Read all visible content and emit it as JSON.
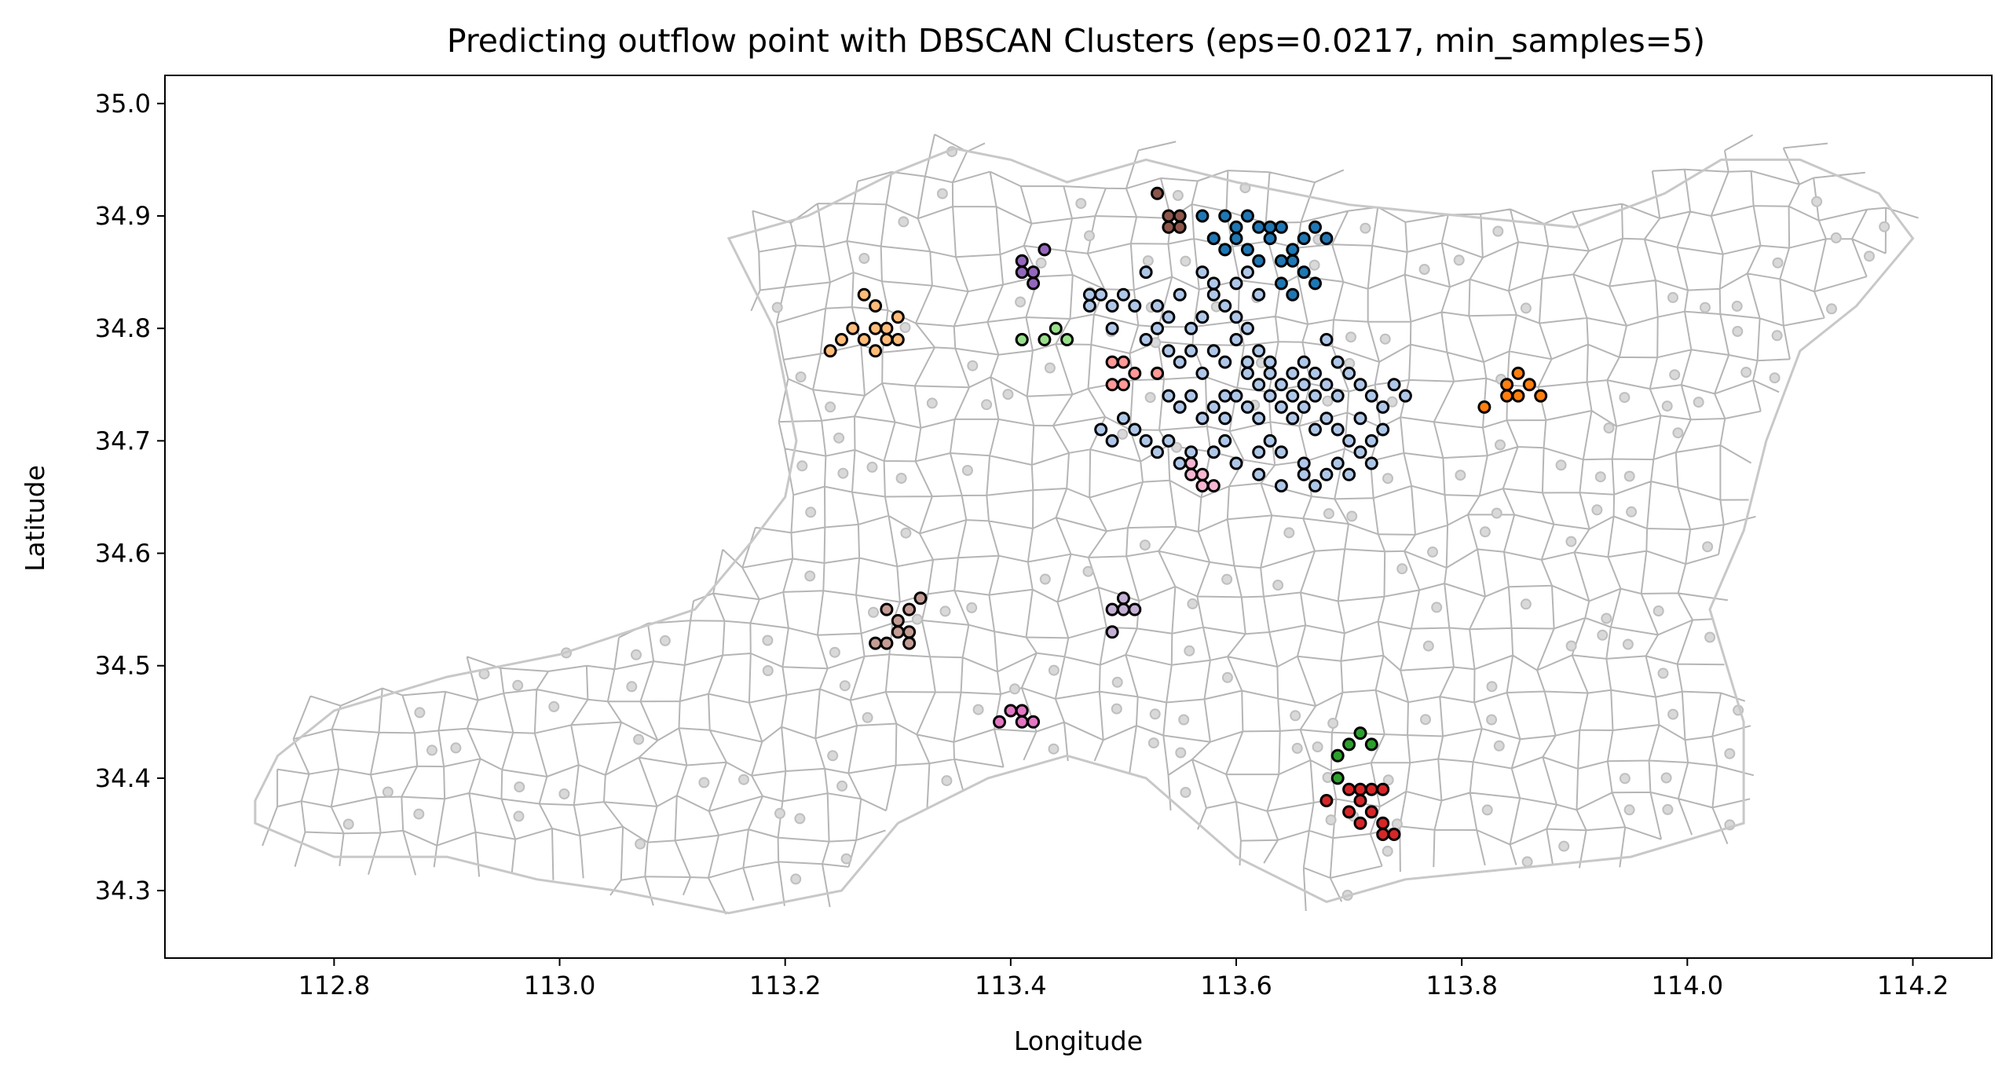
{
  "chart_data": {
    "type": "scatter",
    "title": "Predicting outflow point with DBSCAN Clusters (eps=0.0217, min_samples=5)",
    "xlabel": "Longitude",
    "ylabel": "Latitude",
    "xlim": [
      112.65,
      114.27
    ],
    "ylim": [
      34.24,
      35.025
    ],
    "xticks": [
      "112.8",
      "113.0",
      "113.2",
      "113.4",
      "113.6",
      "113.8",
      "114.0",
      "114.2"
    ],
    "yticks": [
      "34.3",
      "34.4",
      "34.5",
      "34.6",
      "34.7",
      "34.8",
      "34.9",
      "35.0"
    ],
    "grid": false,
    "legend": "none",
    "background": "voronoi-cell-mesh",
    "series": [
      {
        "color": "#aec7e8",
        "points": [
          [
            113.47,
            34.83
          ],
          [
            113.48,
            34.83
          ],
          [
            113.49,
            34.82
          ],
          [
            113.5,
            34.83
          ],
          [
            113.51,
            34.82
          ],
          [
            113.52,
            34.85
          ],
          [
            113.53,
            34.82
          ],
          [
            113.54,
            34.81
          ],
          [
            113.55,
            34.83
          ],
          [
            113.56,
            34.8
          ],
          [
            113.57,
            34.81
          ],
          [
            113.58,
            34.83
          ],
          [
            113.59,
            34.82
          ],
          [
            113.6,
            34.81
          ],
          [
            113.61,
            34.8
          ],
          [
            113.47,
            34.82
          ],
          [
            113.49,
            34.8
          ],
          [
            113.52,
            34.79
          ],
          [
            113.53,
            34.8
          ],
          [
            113.54,
            34.78
          ],
          [
            113.55,
            34.77
          ],
          [
            113.56,
            34.78
          ],
          [
            113.57,
            34.76
          ],
          [
            113.58,
            34.78
          ],
          [
            113.59,
            34.77
          ],
          [
            113.6,
            34.79
          ],
          [
            113.61,
            34.76
          ],
          [
            113.62,
            34.78
          ],
          [
            113.63,
            34.77
          ],
          [
            113.64,
            34.75
          ],
          [
            113.65,
            34.76
          ],
          [
            113.66,
            34.75
          ],
          [
            113.67,
            34.76
          ],
          [
            113.68,
            34.75
          ],
          [
            113.69,
            34.77
          ],
          [
            113.7,
            34.76
          ],
          [
            113.71,
            34.75
          ],
          [
            113.72,
            34.74
          ],
          [
            113.73,
            34.73
          ],
          [
            113.74,
            34.75
          ],
          [
            113.75,
            34.74
          ],
          [
            113.53,
            34.76
          ],
          [
            113.54,
            34.74
          ],
          [
            113.55,
            34.73
          ],
          [
            113.56,
            34.74
          ],
          [
            113.57,
            34.72
          ],
          [
            113.58,
            34.73
          ],
          [
            113.59,
            34.72
          ],
          [
            113.6,
            34.74
          ],
          [
            113.61,
            34.73
          ],
          [
            113.62,
            34.72
          ],
          [
            113.63,
            34.74
          ],
          [
            113.64,
            34.73
          ],
          [
            113.65,
            34.72
          ],
          [
            113.66,
            34.73
          ],
          [
            113.67,
            34.71
          ],
          [
            113.68,
            34.72
          ],
          [
            113.69,
            34.71
          ],
          [
            113.7,
            34.7
          ],
          [
            113.71,
            34.72
          ],
          [
            113.72,
            34.7
          ],
          [
            113.73,
            34.71
          ],
          [
            113.48,
            34.71
          ],
          [
            113.49,
            34.7
          ],
          [
            113.5,
            34.72
          ],
          [
            113.51,
            34.71
          ],
          [
            113.52,
            34.7
          ],
          [
            113.53,
            34.69
          ],
          [
            113.54,
            34.7
          ],
          [
            113.55,
            34.68
          ],
          [
            113.56,
            34.69
          ],
          [
            113.58,
            34.69
          ],
          [
            113.59,
            34.7
          ],
          [
            113.6,
            34.68
          ],
          [
            113.62,
            34.69
          ],
          [
            113.63,
            34.7
          ],
          [
            113.64,
            34.69
          ],
          [
            113.66,
            34.68
          ],
          [
            113.67,
            34.66
          ],
          [
            113.68,
            34.67
          ],
          [
            113.69,
            34.68
          ],
          [
            113.7,
            34.67
          ],
          [
            113.71,
            34.69
          ],
          [
            113.72,
            34.68
          ],
          [
            113.62,
            34.67
          ],
          [
            113.64,
            34.66
          ],
          [
            113.66,
            34.67
          ],
          [
            113.57,
            34.85
          ],
          [
            113.58,
            34.84
          ],
          [
            113.6,
            34.84
          ],
          [
            113.61,
            34.85
          ],
          [
            113.62,
            34.83
          ],
          [
            113.61,
            34.77
          ],
          [
            113.62,
            34.75
          ],
          [
            113.63,
            34.76
          ],
          [
            113.65,
            34.74
          ],
          [
            113.66,
            34.77
          ],
          [
            113.67,
            34.74
          ],
          [
            113.69,
            34.74
          ],
          [
            113.68,
            34.79
          ],
          [
            113.59,
            34.74
          ]
        ]
      },
      {
        "color": "#1f77b4",
        "points": [
          [
            113.57,
            34.9
          ],
          [
            113.59,
            34.9
          ],
          [
            113.6,
            34.89
          ],
          [
            113.61,
            34.9
          ],
          [
            113.62,
            34.89
          ],
          [
            113.63,
            34.88
          ],
          [
            113.64,
            34.89
          ],
          [
            113.65,
            34.87
          ],
          [
            113.66,
            34.88
          ],
          [
            113.67,
            34.89
          ],
          [
            113.68,
            34.88
          ],
          [
            113.58,
            34.88
          ],
          [
            113.59,
            34.87
          ],
          [
            113.6,
            34.88
          ],
          [
            113.61,
            34.87
          ],
          [
            113.62,
            34.86
          ],
          [
            113.64,
            34.86
          ],
          [
            113.65,
            34.86
          ],
          [
            113.66,
            34.85
          ],
          [
            113.67,
            34.84
          ],
          [
            113.64,
            34.84
          ],
          [
            113.65,
            34.83
          ],
          [
            113.58,
            34.88
          ],
          [
            113.63,
            34.89
          ]
        ]
      },
      {
        "color": "#ffbb78",
        "points": [
          [
            113.27,
            34.83
          ],
          [
            113.28,
            34.82
          ],
          [
            113.26,
            34.8
          ],
          [
            113.28,
            34.8
          ],
          [
            113.3,
            34.81
          ],
          [
            113.25,
            34.79
          ],
          [
            113.27,
            34.79
          ],
          [
            113.29,
            34.79
          ],
          [
            113.3,
            34.79
          ],
          [
            113.28,
            34.78
          ],
          [
            113.24,
            34.78
          ],
          [
            113.29,
            34.8
          ]
        ]
      },
      {
        "color": "#ff7f0e",
        "points": [
          [
            113.82,
            34.73
          ],
          [
            113.84,
            34.74
          ],
          [
            113.85,
            34.76
          ],
          [
            113.86,
            34.75
          ],
          [
            113.87,
            34.74
          ],
          [
            113.85,
            34.74
          ],
          [
            113.84,
            34.75
          ]
        ]
      },
      {
        "color": "#8c564b",
        "points": [
          [
            113.53,
            34.92
          ],
          [
            113.54,
            34.9
          ],
          [
            113.55,
            34.9
          ],
          [
            113.54,
            34.89
          ],
          [
            113.55,
            34.89
          ]
        ]
      },
      {
        "color": "#9467bd",
        "points": [
          [
            113.41,
            34.86
          ],
          [
            113.41,
            34.85
          ],
          [
            113.42,
            34.85
          ],
          [
            113.43,
            34.87
          ],
          [
            113.42,
            34.84
          ]
        ]
      },
      {
        "color": "#98df8a",
        "points": [
          [
            113.41,
            34.79
          ],
          [
            113.43,
            34.79
          ],
          [
            113.44,
            34.8
          ],
          [
            113.45,
            34.79
          ],
          [
            113.41,
            34.79
          ]
        ]
      },
      {
        "color": "#ff9896",
        "points": [
          [
            113.49,
            34.77
          ],
          [
            113.5,
            34.77
          ],
          [
            113.51,
            34.76
          ],
          [
            113.49,
            34.75
          ],
          [
            113.5,
            34.75
          ],
          [
            113.53,
            34.76
          ]
        ]
      },
      {
        "color": "#c49c94",
        "points": [
          [
            113.29,
            34.55
          ],
          [
            113.3,
            34.54
          ],
          [
            113.31,
            34.53
          ],
          [
            113.32,
            34.56
          ],
          [
            113.3,
            34.53
          ],
          [
            113.31,
            34.52
          ],
          [
            113.29,
            34.52
          ],
          [
            113.28,
            34.52
          ],
          [
            113.31,
            34.55
          ]
        ]
      },
      {
        "color": "#c5b0d5",
        "points": [
          [
            113.49,
            34.55
          ],
          [
            113.5,
            34.56
          ],
          [
            113.51,
            34.55
          ],
          [
            113.49,
            34.53
          ],
          [
            113.5,
            34.55
          ]
        ]
      },
      {
        "color": "#f7b6d2",
        "points": [
          [
            113.56,
            34.68
          ],
          [
            113.57,
            34.67
          ],
          [
            113.58,
            34.66
          ],
          [
            113.56,
            34.67
          ],
          [
            113.57,
            34.66
          ]
        ]
      },
      {
        "color": "#e377c2",
        "points": [
          [
            113.4,
            34.46
          ],
          [
            113.41,
            34.45
          ],
          [
            113.42,
            34.45
          ],
          [
            113.39,
            34.45
          ],
          [
            113.41,
            34.46
          ]
        ]
      },
      {
        "color": "#2ca02c",
        "points": [
          [
            113.69,
            34.42
          ],
          [
            113.7,
            34.43
          ],
          [
            113.71,
            34.44
          ],
          [
            113.72,
            34.43
          ],
          [
            113.69,
            34.4
          ]
        ]
      },
      {
        "color": "#d62728",
        "points": [
          [
            113.7,
            34.39
          ],
          [
            113.71,
            34.39
          ],
          [
            113.72,
            34.39
          ],
          [
            113.73,
            34.39
          ],
          [
            113.68,
            34.38
          ],
          [
            113.7,
            34.37
          ],
          [
            113.71,
            34.38
          ],
          [
            113.72,
            34.37
          ],
          [
            113.73,
            34.36
          ],
          [
            113.71,
            34.36
          ],
          [
            113.73,
            34.35
          ],
          [
            113.74,
            34.35
          ]
        ]
      }
    ]
  }
}
